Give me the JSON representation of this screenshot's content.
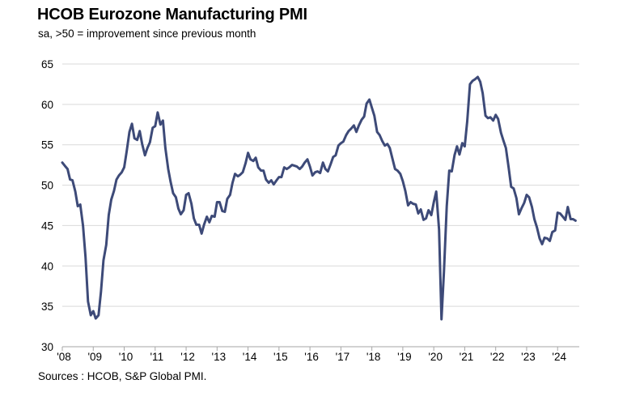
{
  "header": {
    "title": "HCOB Eurozone Manufacturing PMI",
    "subtitle": "sa, >50 = improvement  since previous month"
  },
  "footer": {
    "source": "Sources : HCOB, S&P Global PMI."
  },
  "colors": {
    "line": "#3d4a78",
    "grid": "#d9d9d9",
    "axis": "#a6a6a6"
  },
  "chart_data": {
    "type": "line",
    "title": "HCOB Eurozone Manufacturing PMI",
    "subtitle": "sa, >50 = improvement  since previous month",
    "xlabel": "",
    "ylabel": "",
    "ylim": [
      30,
      65
    ],
    "yticks": [
      30,
      35,
      40,
      45,
      50,
      55,
      60,
      65
    ],
    "xlim": [
      2008.0,
      2024.7
    ],
    "xticks": [
      {
        "v": 2008,
        "label": "'08"
      },
      {
        "v": 2009,
        "label": "'09"
      },
      {
        "v": 2010,
        "label": "'10"
      },
      {
        "v": 2011,
        "label": "'11"
      },
      {
        "v": 2012,
        "label": "'12"
      },
      {
        "v": 2013,
        "label": "'13"
      },
      {
        "v": 2014,
        "label": "'14"
      },
      {
        "v": 2015,
        "label": "'15"
      },
      {
        "v": 2016,
        "label": "'16"
      },
      {
        "v": 2017,
        "label": "'17"
      },
      {
        "v": 2018,
        "label": "'18"
      },
      {
        "v": 2019,
        "label": "'19"
      },
      {
        "v": 2020,
        "label": "'20"
      },
      {
        "v": 2021,
        "label": "'21"
      },
      {
        "v": 2022,
        "label": "'22"
      },
      {
        "v": 2023,
        "label": "'23"
      },
      {
        "v": 2024,
        "label": "'24"
      }
    ],
    "grid": true,
    "legend": "none",
    "series": [
      {
        "color": "#3d4a78",
        "x": [
          2008.0,
          2008.08,
          2008.17,
          2008.25,
          2008.33,
          2008.42,
          2008.5,
          2008.58,
          2008.67,
          2008.75,
          2008.83,
          2008.92,
          2009.0,
          2009.08,
          2009.17,
          2009.25,
          2009.33,
          2009.42,
          2009.5,
          2009.58,
          2009.67,
          2009.75,
          2009.83,
          2009.92,
          2010.0,
          2010.08,
          2010.17,
          2010.25,
          2010.33,
          2010.42,
          2010.5,
          2010.58,
          2010.67,
          2010.75,
          2010.83,
          2010.92,
          2011.0,
          2011.08,
          2011.17,
          2011.25,
          2011.33,
          2011.42,
          2011.5,
          2011.58,
          2011.67,
          2011.75,
          2011.83,
          2011.92,
          2012.0,
          2012.08,
          2012.17,
          2012.25,
          2012.33,
          2012.42,
          2012.5,
          2012.58,
          2012.67,
          2012.75,
          2012.83,
          2012.92,
          2013.0,
          2013.08,
          2013.17,
          2013.25,
          2013.33,
          2013.42,
          2013.5,
          2013.58,
          2013.67,
          2013.75,
          2013.83,
          2013.92,
          2014.0,
          2014.08,
          2014.17,
          2014.25,
          2014.33,
          2014.42,
          2014.5,
          2014.58,
          2014.67,
          2014.75,
          2014.83,
          2014.92,
          2015.0,
          2015.08,
          2015.17,
          2015.25,
          2015.33,
          2015.42,
          2015.5,
          2015.58,
          2015.67,
          2015.75,
          2015.83,
          2015.92,
          2016.0,
          2016.08,
          2016.17,
          2016.25,
          2016.33,
          2016.42,
          2016.5,
          2016.58,
          2016.67,
          2016.75,
          2016.83,
          2016.92,
          2017.0,
          2017.08,
          2017.17,
          2017.25,
          2017.33,
          2017.42,
          2017.5,
          2017.58,
          2017.67,
          2017.75,
          2017.83,
          2017.92,
          2018.0,
          2018.08,
          2018.17,
          2018.25,
          2018.33,
          2018.42,
          2018.5,
          2018.58,
          2018.67,
          2018.75,
          2018.83,
          2018.92,
          2019.0,
          2019.08,
          2019.17,
          2019.25,
          2019.33,
          2019.42,
          2019.5,
          2019.58,
          2019.67,
          2019.75,
          2019.83,
          2019.92,
          2020.0,
          2020.08,
          2020.17,
          2020.25,
          2020.33,
          2020.42,
          2020.5,
          2020.58,
          2020.67,
          2020.75,
          2020.83,
          2020.92,
          2021.0,
          2021.08,
          2021.17,
          2021.25,
          2021.33,
          2021.42,
          2021.5,
          2021.58,
          2021.67,
          2021.75,
          2021.83,
          2021.92,
          2022.0,
          2022.08,
          2022.17,
          2022.25,
          2022.33,
          2022.42,
          2022.5,
          2022.58,
          2022.67,
          2022.75,
          2022.83,
          2022.92,
          2023.0,
          2023.08,
          2023.17,
          2023.25,
          2023.33,
          2023.42,
          2023.5,
          2023.58,
          2023.67,
          2023.75,
          2023.83,
          2023.92,
          2024.0,
          2024.08,
          2024.17,
          2024.25,
          2024.33,
          2024.42,
          2024.5,
          2024.58
        ],
        "y": [
          52.8,
          52.4,
          52.0,
          50.7,
          50.6,
          49.2,
          47.4,
          47.6,
          45.0,
          41.1,
          35.6,
          33.9,
          34.4,
          33.5,
          33.9,
          36.8,
          40.7,
          42.6,
          46.3,
          48.2,
          49.3,
          50.7,
          51.2,
          51.6,
          52.2,
          54.2,
          56.6,
          57.6,
          55.8,
          55.6,
          56.7,
          55.1,
          53.7,
          54.6,
          55.3,
          57.1,
          57.3,
          59.0,
          57.5,
          58.0,
          54.6,
          52.0,
          50.4,
          49.0,
          48.5,
          47.1,
          46.4,
          46.9,
          48.8,
          49.0,
          47.7,
          45.9,
          45.1,
          45.1,
          44.0,
          45.1,
          46.1,
          45.4,
          46.2,
          46.1,
          47.9,
          47.9,
          46.8,
          46.7,
          48.3,
          48.8,
          50.3,
          51.4,
          51.1,
          51.3,
          51.6,
          52.7,
          54.0,
          53.2,
          53.0,
          53.4,
          52.2,
          51.8,
          51.8,
          50.7,
          50.3,
          50.6,
          50.1,
          50.6,
          51.0,
          51.0,
          52.2,
          52.0,
          52.2,
          52.5,
          52.4,
          52.3,
          52.0,
          52.3,
          52.8,
          53.2,
          52.3,
          51.2,
          51.6,
          51.7,
          51.5,
          52.8,
          52.0,
          51.7,
          52.6,
          53.5,
          53.7,
          54.9,
          55.2,
          55.4,
          56.2,
          56.7,
          57.0,
          57.4,
          56.6,
          57.4,
          58.1,
          58.5,
          60.1,
          60.6,
          59.6,
          58.6,
          56.6,
          56.2,
          55.5,
          54.9,
          55.1,
          54.6,
          53.2,
          52.0,
          51.8,
          51.4,
          50.5,
          49.3,
          47.5,
          47.9,
          47.7,
          47.6,
          46.5,
          47.0,
          45.7,
          45.9,
          46.9,
          46.3,
          47.9,
          49.2,
          44.5,
          33.4,
          39.4,
          47.4,
          51.8,
          51.7,
          53.7,
          54.8,
          53.8,
          55.2,
          54.8,
          57.9,
          62.5,
          62.9,
          63.1,
          63.4,
          62.8,
          61.4,
          58.6,
          58.3,
          58.4,
          58.0,
          58.7,
          58.2,
          56.5,
          55.5,
          54.6,
          52.1,
          49.8,
          49.6,
          48.4,
          46.4,
          47.1,
          47.8,
          48.8,
          48.5,
          47.3,
          45.8,
          44.8,
          43.4,
          42.7,
          43.5,
          43.4,
          43.1,
          44.2,
          44.4,
          46.6,
          46.5,
          46.1,
          45.7,
          47.3,
          45.8,
          45.8,
          45.6
        ]
      }
    ]
  }
}
